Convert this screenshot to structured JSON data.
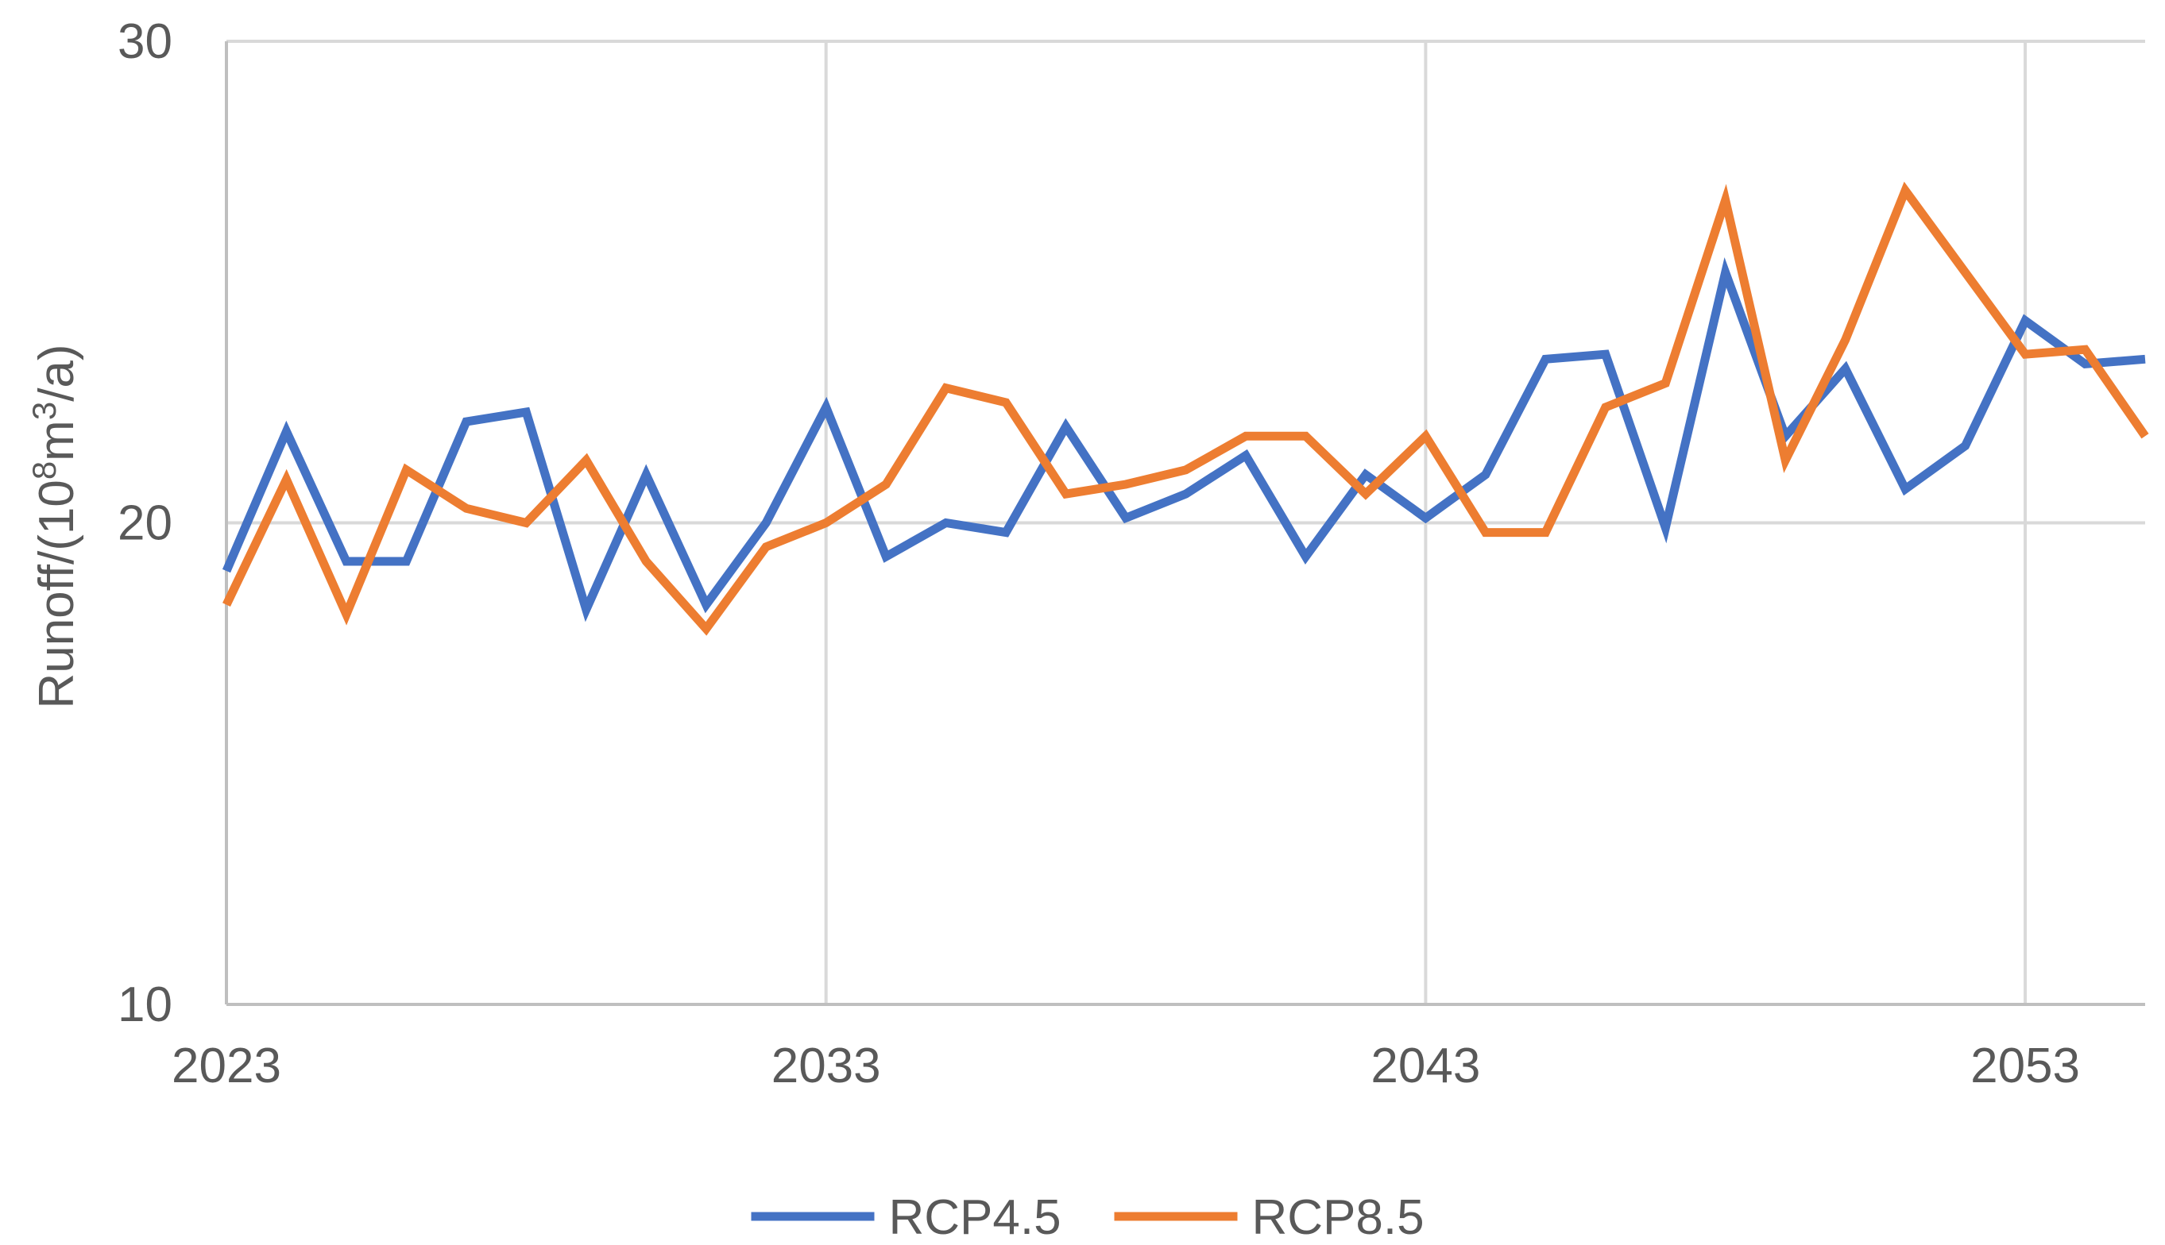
{
  "chart_data": {
    "type": "line",
    "title": "",
    "xlabel": "",
    "ylabel_main": "Runoff/(10",
    "ylabel_sup1": "8",
    "ylabel_mid": "m",
    "ylabel_sup2": "3",
    "ylabel_end": "/a)",
    "xlim": [
      2023,
      2055
    ],
    "ylim": [
      10,
      30
    ],
    "x_ticks": [
      2023,
      2033,
      2043,
      2053
    ],
    "x_tick_labels": [
      "2023",
      "2033",
      "2043",
      "2053"
    ],
    "y_ticks": [
      10,
      20,
      30
    ],
    "y_tick_labels": [
      "10",
      "20",
      "30"
    ],
    "grid": true,
    "legend_position": "bottom",
    "x": [
      2023,
      2024,
      2025,
      2026,
      2027,
      2028,
      2029,
      2030,
      2031,
      2032,
      2033,
      2034,
      2035,
      2036,
      2037,
      2038,
      2039,
      2040,
      2041,
      2042,
      2043,
      2044,
      2045,
      2046,
      2047,
      2048,
      2049,
      2050,
      2051,
      2052,
      2053,
      2054,
      2055
    ],
    "series": [
      {
        "name": "RCP4.5",
        "color": "#4472C4",
        "values": [
          19.0,
          21.9,
          19.2,
          19.2,
          22.1,
          22.3,
          18.2,
          21.0,
          18.3,
          20.0,
          22.4,
          19.3,
          20.0,
          19.8,
          22.0,
          20.1,
          20.6,
          21.4,
          19.3,
          21.0,
          20.1,
          21.0,
          23.4,
          23.5,
          19.9,
          25.2,
          21.8,
          23.2,
          20.7,
          21.6,
          24.2,
          23.3,
          23.4
        ]
      },
      {
        "name": "RCP8.5",
        "color": "#ED7D31",
        "values": [
          18.3,
          20.9,
          18.1,
          21.1,
          20.3,
          20.0,
          21.3,
          19.2,
          17.8,
          19.5,
          20.0,
          20.8,
          22.8,
          22.5,
          20.6,
          20.8,
          21.1,
          21.8,
          21.8,
          20.6,
          21.8,
          19.8,
          19.8,
          22.4,
          22.9,
          26.7,
          21.3,
          23.8,
          26.9,
          25.2,
          23.5,
          23.6,
          21.8
        ]
      }
    ]
  }
}
